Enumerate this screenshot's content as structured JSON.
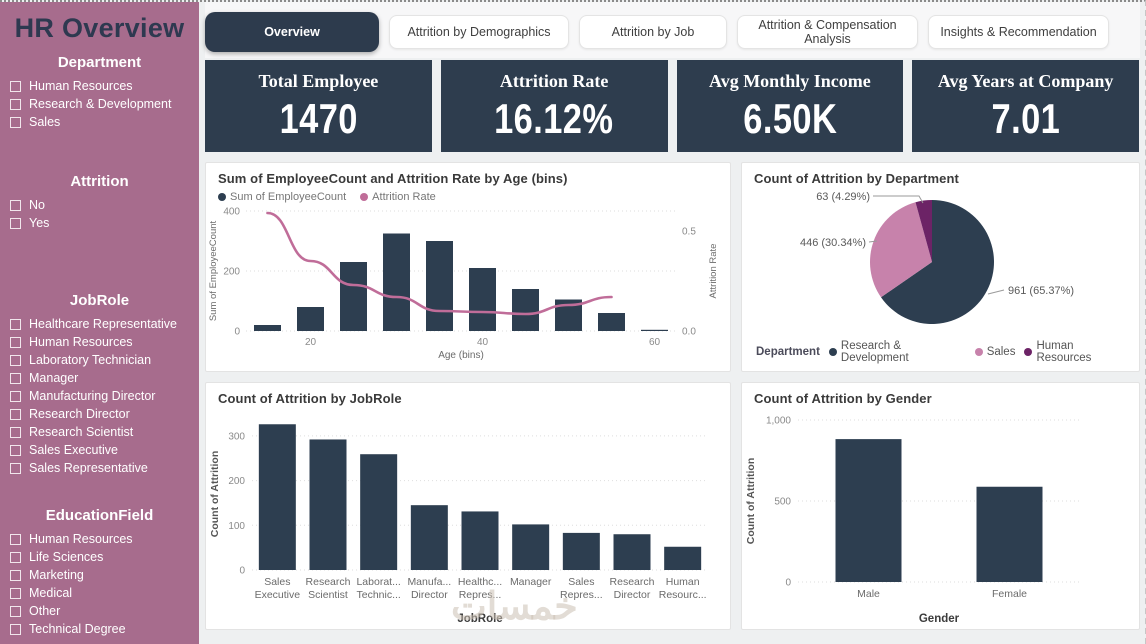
{
  "sidebar": {
    "title": "HR Overview",
    "sections": [
      {
        "title": "Department",
        "items": [
          "Human Resources",
          "Research & Development",
          "Sales"
        ]
      },
      {
        "title": "Attrition",
        "items": [
          "No",
          "Yes"
        ]
      },
      {
        "title": "JobRole",
        "items": [
          "Healthcare Representative",
          "Human Resources",
          "Laboratory Technician",
          "Manager",
          "Manufacturing Director",
          "Research Director",
          "Research Scientist",
          "Sales Executive",
          "Sales Representative"
        ]
      },
      {
        "title": "EducationField",
        "items": [
          "Human Resources",
          "Life Sciences",
          "Marketing",
          "Medical",
          "Other",
          "Technical Degree"
        ]
      }
    ]
  },
  "tabs": [
    {
      "label": "Overview",
      "active": true
    },
    {
      "label": "Attrition by Demographics",
      "active": false
    },
    {
      "label": "Attrition by Job",
      "active": false
    },
    {
      "label": "Attrition & Compensation Analysis",
      "active": false
    },
    {
      "label": "Insights & Recommendation",
      "active": false
    }
  ],
  "kpis": [
    {
      "title": "Total Employee",
      "value": "1470"
    },
    {
      "title": "Attrition Rate",
      "value": "16.12%"
    },
    {
      "title": "Avg Monthly Income",
      "value": "6.50K"
    },
    {
      "title": "Avg Years at Company",
      "value": "7.01"
    }
  ],
  "colors": {
    "sidebar": "#a76c8d",
    "dark": "#2e3d4e",
    "bar": "#2d3e50",
    "line": "#c06d99",
    "pie_pink": "#c782ab",
    "pie_purple": "#6c2366",
    "background": "#eef0f1"
  },
  "watermark": "خمسات",
  "chart_data": [
    {
      "type": "combo-bar-line",
      "title": "Sum of EmployeeCount and Attrition Rate by Age (bins)",
      "xlabel": "Age (bins)",
      "x": [
        15,
        20,
        25,
        30,
        35,
        40,
        45,
        50,
        55,
        60
      ],
      "x_ticks": [
        20,
        40,
        60
      ],
      "left_axis": {
        "label": "Sum of EmployeeCount",
        "ticks": [
          0,
          200,
          400
        ],
        "max": 400
      },
      "right_axis": {
        "label": "Attrition Rate",
        "ticks": [
          0,
          0.5
        ],
        "max": 0.6
      },
      "series": [
        {
          "name": "Sum of EmployeeCount",
          "type": "bar",
          "color": "#2d3e50",
          "values": [
            20,
            80,
            230,
            325,
            300,
            210,
            140,
            105,
            60,
            4
          ]
        },
        {
          "name": "Attrition Rate",
          "type": "line",
          "color": "#c06d99",
          "values": [
            0.59,
            0.35,
            0.23,
            0.17,
            0.1,
            0.095,
            0.085,
            0.13,
            0.17,
            null
          ]
        }
      ],
      "legend_position": "top",
      "grid": true
    },
    {
      "type": "pie",
      "title": "Count of Attrition by Department",
      "legend_title": "Department",
      "legend_position": "bottom",
      "slices": [
        {
          "label": "Research & Development",
          "value": 961,
          "pct": "65.37%",
          "callout": "961 (65.37%)",
          "color": "#2d3e50"
        },
        {
          "label": "Sales",
          "value": 446,
          "pct": "30.34%",
          "callout": "446 (30.34%)",
          "color": "#c782ab"
        },
        {
          "label": "Human Resources",
          "value": 63,
          "pct": "4.29%",
          "callout": "63 (4.29%)",
          "color": "#6c2366"
        }
      ]
    },
    {
      "type": "bar",
      "title": "Count of Attrition by JobRole",
      "xlabel": "JobRole",
      "ylabel": "Count of Attrition",
      "categories": [
        "Sales Executive",
        "Research Scientist",
        "Laboratory Technician",
        "Manufacturing Director",
        "Healthcare Representative",
        "Manager",
        "Sales Representative",
        "Research Director",
        "Human Resources"
      ],
      "category_labels": [
        [
          "Sales",
          "Executive"
        ],
        [
          "Research",
          "Scientist"
        ],
        [
          "Laborat...",
          "Technic..."
        ],
        [
          "Manufa...",
          "Director"
        ],
        [
          "Healthc...",
          "Repres..."
        ],
        [
          "Manager"
        ],
        [
          "Sales",
          "Repres..."
        ],
        [
          "Research",
          "Director"
        ],
        [
          "Human",
          "Resourc..."
        ]
      ],
      "values": [
        326,
        292,
        259,
        145,
        131,
        102,
        83,
        80,
        52
      ],
      "yticks": [
        0,
        100,
        200,
        300
      ],
      "ytick_labels": [
        "0",
        "100",
        "200",
        "300"
      ],
      "ylim": [
        0,
        340
      ],
      "color": "#2d3e50",
      "grid": true
    },
    {
      "type": "bar",
      "title": "Count of Attrition by Gender",
      "xlabel": "Gender",
      "ylabel": "Count of Attrition",
      "categories": [
        "Male",
        "Female"
      ],
      "category_labels": [
        [
          "Male"
        ],
        [
          "Female"
        ]
      ],
      "values": [
        882,
        588
      ],
      "yticks": [
        0,
        500,
        1000
      ],
      "ytick_labels": [
        "0",
        "500",
        "1,000"
      ],
      "ylim": [
        0,
        1000
      ],
      "color": "#2d3e50",
      "grid": true
    }
  ]
}
